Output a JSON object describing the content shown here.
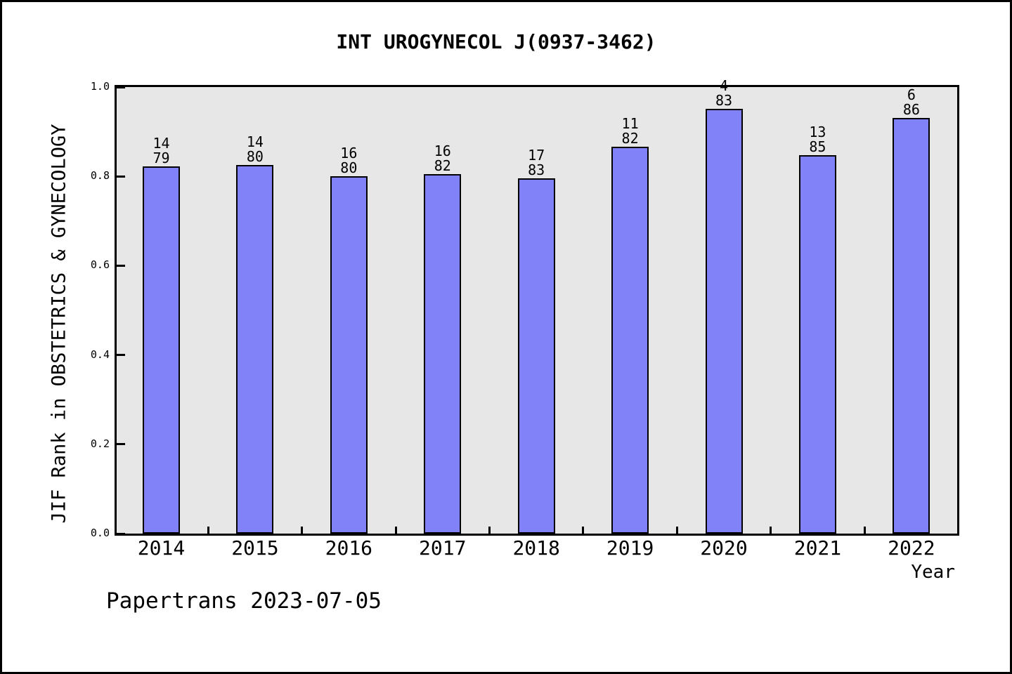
{
  "footer": "Papertrans 2023-07-05",
  "chart_data": {
    "type": "bar",
    "title": "INT UROGYNECOL J(0937-3462)",
    "xlabel": "Year",
    "ylabel": "JIF Rank in OBSTETRICS & GYNECOLOGY",
    "categories": [
      "2014",
      "2015",
      "2016",
      "2017",
      "2018",
      "2019",
      "2020",
      "2021",
      "2022"
    ],
    "series": [
      {
        "name": "rank",
        "values": [
          14,
          14,
          16,
          16,
          17,
          11,
          4,
          13,
          6
        ]
      },
      {
        "name": "category_total",
        "values": [
          79,
          80,
          80,
          82,
          83,
          82,
          83,
          85,
          86
        ]
      }
    ],
    "bar_values": [
      0.8228,
      0.825,
      0.8,
      0.8049,
      0.7952,
      0.8659,
      0.9518,
      0.8471,
      0.9302
    ],
    "bar_label_lines": "rank above total, stacked over each bar",
    "ylim": [
      0.0,
      1.0
    ],
    "yticks": [
      "0.0",
      "0.2",
      "0.4",
      "0.6",
      "0.8",
      "1.0"
    ],
    "grid": false,
    "legend_position": "none",
    "bar_color": "#8181f8",
    "bar_border_color": "#000000",
    "plot_background": "#e7e7e7",
    "page_background": "#ffffff"
  }
}
